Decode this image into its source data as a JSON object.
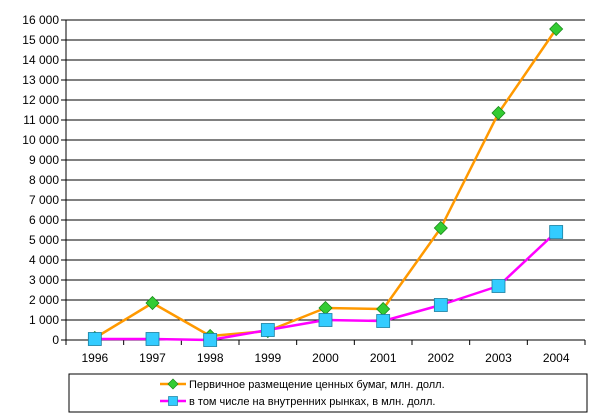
{
  "chart_data": {
    "type": "line",
    "categories": [
      "1996",
      "1997",
      "1998",
      "1999",
      "2000",
      "2001",
      "2002",
      "2003",
      "2004"
    ],
    "series": [
      {
        "name": "Первичное размещение ценных бумаг, млн. долл.",
        "values": [
          100,
          1850,
          200,
          450,
          1600,
          1550,
          5600,
          11350,
          15550
        ],
        "color": "#FF9900",
        "marker": "diamond",
        "marker_color": "#33CC33"
      },
      {
        "name": "в том числе на внутренних рынках, в млн. долл.",
        "values": [
          50,
          50,
          0,
          500,
          1000,
          950,
          1750,
          2700,
          5400
        ],
        "color": "#FF00FF",
        "marker": "square",
        "marker_color": "#33CCFF"
      }
    ],
    "y_ticks": [
      "0",
      "1 000",
      "2 000",
      "3 000",
      "4 000",
      "5 000",
      "6 000",
      "7 000",
      "8 000",
      "9 000",
      "10 000",
      "11 000",
      "12 000",
      "13 000",
      "14 000",
      "15 000",
      "16 000"
    ],
    "ylim": [
      0,
      16000
    ],
    "grid": true,
    "legend_position": "bottom"
  }
}
